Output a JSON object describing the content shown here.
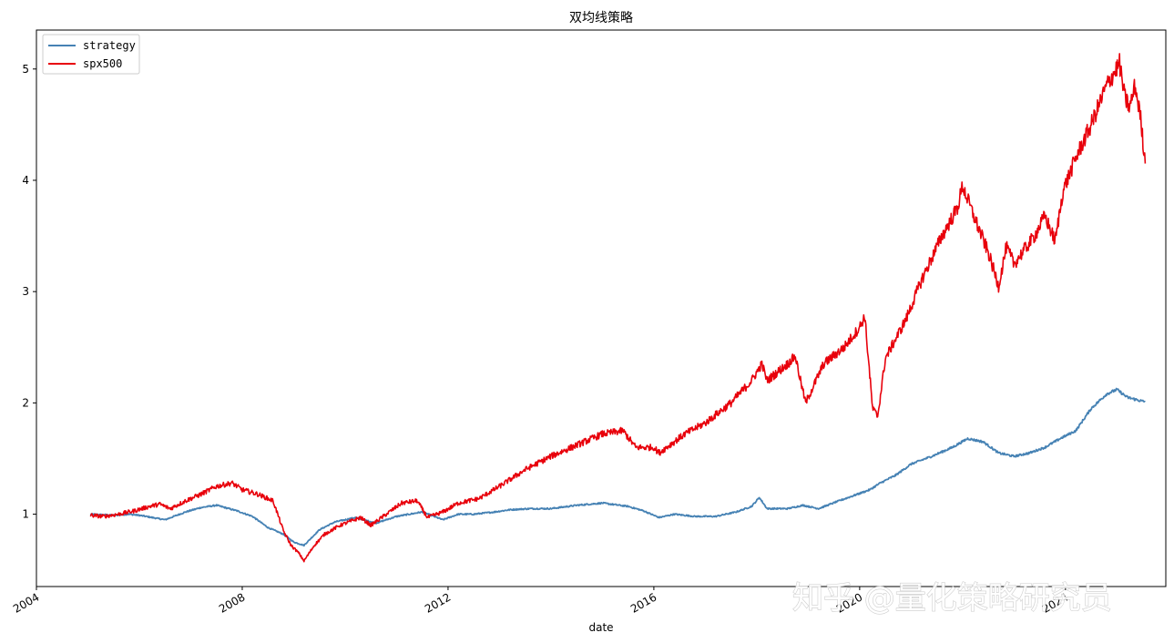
{
  "chart_data": {
    "type": "line",
    "title": "双均线策略",
    "xlabel": "date",
    "ylabel": "",
    "xlim": [
      2004.0,
      2025.95
    ],
    "ylim": [
      0.35,
      5.35
    ],
    "x_ticks": [
      2004,
      2008,
      2012,
      2016,
      2020,
      2024
    ],
    "x_tick_labels": [
      "2004",
      "2008",
      "2012",
      "2016",
      "2020",
      "2024"
    ],
    "y_ticks": [
      1,
      2,
      3,
      4,
      5
    ],
    "y_tick_labels": [
      "1",
      "2",
      "3",
      "4",
      "5"
    ],
    "grid": false,
    "legend_position": "top-left",
    "watermark": "知乎 @量化策略研究员",
    "series": [
      {
        "name": "strategy",
        "color": "#4682b4",
        "points": [
          [
            2005.05,
            1.0
          ],
          [
            2005.5,
            0.99
          ],
          [
            2005.8,
            1.0
          ],
          [
            2006.0,
            0.99
          ],
          [
            2006.5,
            0.95
          ],
          [
            2006.9,
            1.02
          ],
          [
            2007.2,
            1.06
          ],
          [
            2007.5,
            1.08
          ],
          [
            2007.9,
            1.03
          ],
          [
            2008.2,
            0.98
          ],
          [
            2008.5,
            0.88
          ],
          [
            2008.8,
            0.82
          ],
          [
            2009.0,
            0.75
          ],
          [
            2009.2,
            0.72
          ],
          [
            2009.5,
            0.86
          ],
          [
            2009.8,
            0.93
          ],
          [
            2010.2,
            0.97
          ],
          [
            2010.6,
            0.92
          ],
          [
            2011.0,
            0.98
          ],
          [
            2011.5,
            1.02
          ],
          [
            2011.9,
            0.95
          ],
          [
            2012.2,
            1.0
          ],
          [
            2012.5,
            1.0
          ],
          [
            2012.9,
            1.02
          ],
          [
            2013.2,
            1.04
          ],
          [
            2013.6,
            1.05
          ],
          [
            2014.0,
            1.05
          ],
          [
            2014.5,
            1.08
          ],
          [
            2015.0,
            1.1
          ],
          [
            2015.5,
            1.07
          ],
          [
            2015.8,
            1.03
          ],
          [
            2016.1,
            0.97
          ],
          [
            2016.4,
            1.0
          ],
          [
            2016.8,
            0.98
          ],
          [
            2017.2,
            0.98
          ],
          [
            2017.6,
            1.02
          ],
          [
            2017.9,
            1.07
          ],
          [
            2018.05,
            1.15
          ],
          [
            2018.2,
            1.05
          ],
          [
            2018.6,
            1.05
          ],
          [
            2018.9,
            1.08
          ],
          [
            2019.2,
            1.05
          ],
          [
            2019.6,
            1.12
          ],
          [
            2019.9,
            1.17
          ],
          [
            2020.2,
            1.22
          ],
          [
            2020.4,
            1.28
          ],
          [
            2020.7,
            1.35
          ],
          [
            2021.0,
            1.45
          ],
          [
            2021.4,
            1.52
          ],
          [
            2021.8,
            1.6
          ],
          [
            2022.1,
            1.68
          ],
          [
            2022.4,
            1.65
          ],
          [
            2022.7,
            1.55
          ],
          [
            2023.0,
            1.52
          ],
          [
            2023.3,
            1.55
          ],
          [
            2023.6,
            1.6
          ],
          [
            2023.9,
            1.68
          ],
          [
            2024.2,
            1.75
          ],
          [
            2024.5,
            1.95
          ],
          [
            2024.8,
            2.08
          ],
          [
            2025.0,
            2.12
          ],
          [
            2025.2,
            2.05
          ],
          [
            2025.45,
            2.02
          ],
          [
            2025.55,
            2.01
          ]
        ]
      },
      {
        "name": "spx500",
        "color": "#e8000b",
        "points": [
          [
            2005.05,
            0.99
          ],
          [
            2005.3,
            0.98
          ],
          [
            2005.6,
            1.0
          ],
          [
            2005.9,
            1.03
          ],
          [
            2006.2,
            1.07
          ],
          [
            2006.4,
            1.09
          ],
          [
            2006.6,
            1.05
          ],
          [
            2006.9,
            1.12
          ],
          [
            2007.2,
            1.18
          ],
          [
            2007.5,
            1.25
          ],
          [
            2007.8,
            1.28
          ],
          [
            2008.0,
            1.22
          ],
          [
            2008.3,
            1.18
          ],
          [
            2008.6,
            1.12
          ],
          [
            2008.8,
            0.85
          ],
          [
            2008.95,
            0.72
          ],
          [
            2009.1,
            0.65
          ],
          [
            2009.2,
            0.58
          ],
          [
            2009.4,
            0.72
          ],
          [
            2009.6,
            0.82
          ],
          [
            2009.9,
            0.9
          ],
          [
            2010.3,
            0.97
          ],
          [
            2010.5,
            0.9
          ],
          [
            2010.8,
            1.0
          ],
          [
            2011.1,
            1.1
          ],
          [
            2011.4,
            1.12
          ],
          [
            2011.6,
            0.97
          ],
          [
            2011.9,
            1.02
          ],
          [
            2012.2,
            1.1
          ],
          [
            2012.6,
            1.14
          ],
          [
            2013.0,
            1.25
          ],
          [
            2013.5,
            1.4
          ],
          [
            2014.0,
            1.52
          ],
          [
            2014.5,
            1.62
          ],
          [
            2015.0,
            1.72
          ],
          [
            2015.4,
            1.75
          ],
          [
            2015.65,
            1.6
          ],
          [
            2016.0,
            1.6
          ],
          [
            2016.1,
            1.55
          ],
          [
            2016.6,
            1.72
          ],
          [
            2017.0,
            1.82
          ],
          [
            2017.5,
            2.0
          ],
          [
            2017.9,
            2.2
          ],
          [
            2018.1,
            2.35
          ],
          [
            2018.2,
            2.2
          ],
          [
            2018.6,
            2.35
          ],
          [
            2018.75,
            2.42
          ],
          [
            2018.85,
            2.2
          ],
          [
            2018.95,
            2.0
          ],
          [
            2019.3,
            2.35
          ],
          [
            2019.7,
            2.5
          ],
          [
            2020.0,
            2.68
          ],
          [
            2020.1,
            2.78
          ],
          [
            2020.25,
            1.95
          ],
          [
            2020.35,
            1.88
          ],
          [
            2020.5,
            2.4
          ],
          [
            2020.9,
            2.75
          ],
          [
            2021.2,
            3.1
          ],
          [
            2021.6,
            3.5
          ],
          [
            2021.9,
            3.75
          ],
          [
            2022.0,
            3.95
          ],
          [
            2022.2,
            3.7
          ],
          [
            2022.5,
            3.35
          ],
          [
            2022.7,
            3.05
          ],
          [
            2022.85,
            3.4
          ],
          [
            2023.0,
            3.25
          ],
          [
            2023.4,
            3.5
          ],
          [
            2023.6,
            3.68
          ],
          [
            2023.8,
            3.45
          ],
          [
            2023.95,
            3.9
          ],
          [
            2024.2,
            4.2
          ],
          [
            2024.5,
            4.5
          ],
          [
            2024.8,
            4.85
          ],
          [
            2025.05,
            5.05
          ],
          [
            2025.15,
            4.75
          ],
          [
            2025.25,
            4.65
          ],
          [
            2025.35,
            4.85
          ],
          [
            2025.45,
            4.6
          ],
          [
            2025.55,
            4.15
          ]
        ]
      }
    ]
  }
}
